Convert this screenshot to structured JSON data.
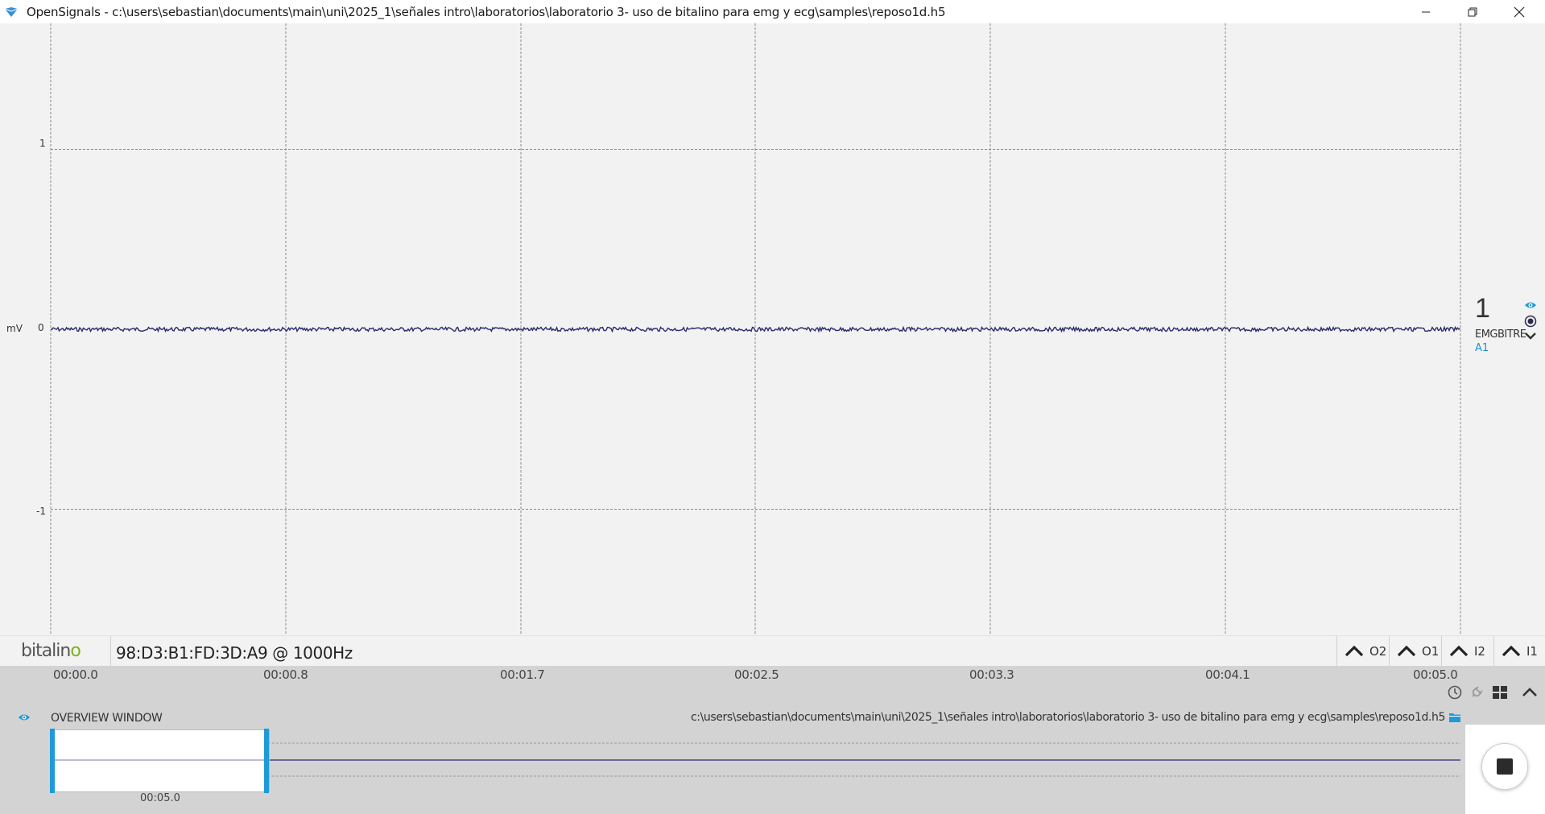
{
  "window": {
    "title": "OpenSignals - c:\\users\\sebastian\\documents\\main\\uni\\2025_1\\señales intro\\laboratorios\\laboratorio 3- uso de bitalino para emg y ecg\\samples\\reposo1d.h5",
    "controls": [
      "minimize-icon",
      "restore-icon",
      "close-icon"
    ]
  },
  "plot": {
    "y_unit": "mV",
    "y_ticks": [
      "1",
      "0",
      "-1"
    ],
    "ylim": [
      -1.7,
      1.7
    ],
    "signal_color": "#2a2a6e",
    "grid": "dashed"
  },
  "channel": {
    "number": "1",
    "sensor": "EMGBITRE",
    "port": "A1",
    "icons": [
      "eye-icon",
      "target-icon",
      "chevron-down-icon"
    ]
  },
  "device": {
    "brand_main": "bitalin",
    "brand_accent": "o",
    "label": "98:D3:B1:FD:3D:A9 @ 1000Hz",
    "io_buttons": [
      {
        "label": "O2"
      },
      {
        "label": "O1"
      },
      {
        "label": "I2"
      },
      {
        "label": "I1"
      }
    ]
  },
  "timeline": {
    "labels": [
      "00:00.0",
      "00:00.8",
      "00:01.7",
      "00:02.5",
      "00:03.3",
      "00:04.1",
      "00:05.0"
    ],
    "tools": [
      "clock-icon",
      "plug-icon",
      "grid-icon",
      "chevron-up-icon"
    ]
  },
  "overview": {
    "title": "OVERVIEW WINDOW",
    "path": "c:\\users\\sebastian\\documents\\main\\uni\\2025_1\\señales intro\\laboratorios\\laboratorio 3- uso de bitalino para emg y ecg\\samples\\reposo1d.h5",
    "window_duration": "00:05.0"
  },
  "colors": {
    "accent": "#1e9ad8",
    "brand_green": "#7ab317",
    "signal": "#2a2a6e"
  }
}
